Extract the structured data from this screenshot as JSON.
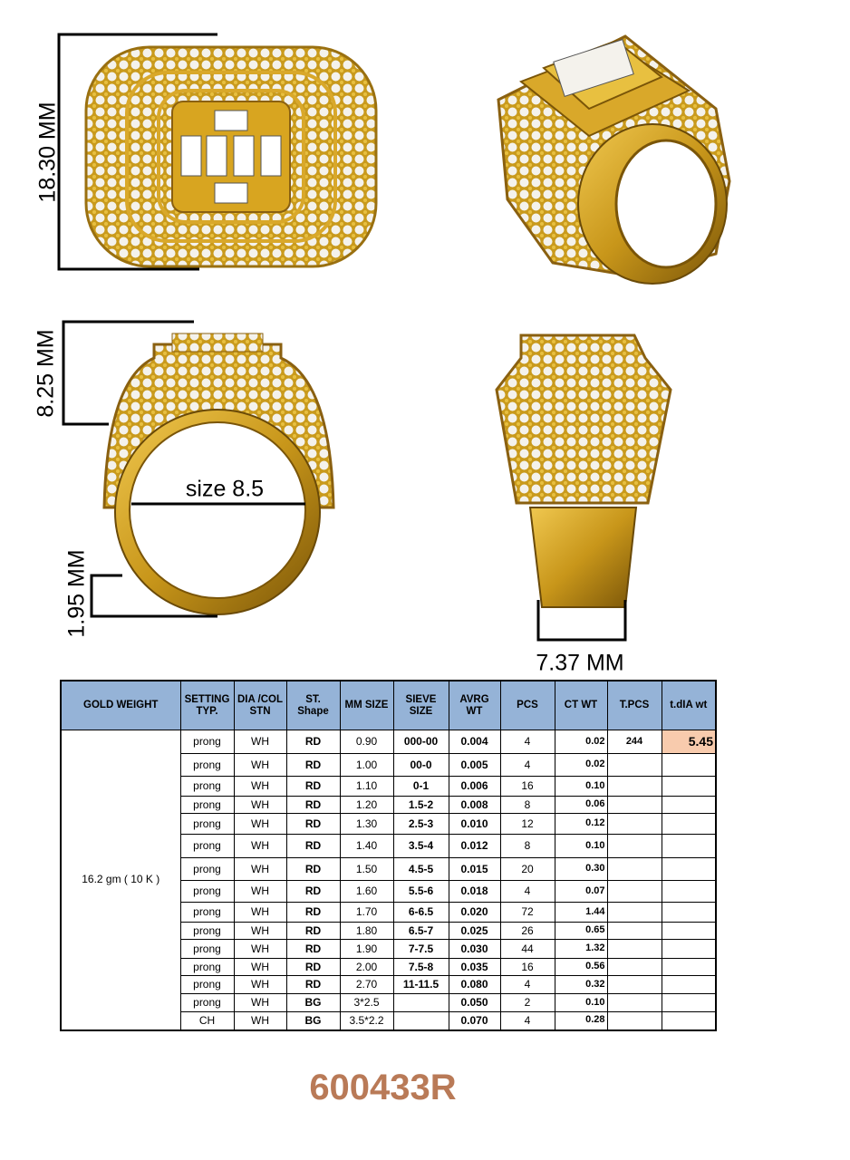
{
  "dimensions": {
    "top_height": "18.30 MM",
    "side_height": "8.25 MM",
    "ring_size": "size 8.5",
    "shank_height": "1.95 MM",
    "shank_width": "7.37 MM"
  },
  "table": {
    "headers": [
      "GOLD WEIGHT",
      "SETTING TYP.",
      "DIA /COL STN",
      "ST. Shape",
      "MM SIZE",
      "SIEVE SIZE",
      "AVRG WT",
      "PCS",
      "CT WT",
      "T.PCS",
      "t.dIA wt"
    ],
    "gold_weight": "16.2 gm ( 10 K )",
    "total_pcs": "244",
    "total_dia_wt": "5.45",
    "rows": [
      [
        "prong",
        "WH",
        "RD",
        "0.90",
        "000-00",
        "0.004",
        "4",
        "0.02"
      ],
      [
        "prong",
        "WH",
        "RD",
        "1.00",
        "00-0",
        "0.005",
        "4",
        "0.02"
      ],
      [
        "prong",
        "WH",
        "RD",
        "1.10",
        "0-1",
        "0.006",
        "16",
        "0.10"
      ],
      [
        "prong",
        "WH",
        "RD",
        "1.20",
        "1.5-2",
        "0.008",
        "8",
        "0.06"
      ],
      [
        "prong",
        "WH",
        "RD",
        "1.30",
        "2.5-3",
        "0.010",
        "12",
        "0.12"
      ],
      [
        "prong",
        "WH",
        "RD",
        "1.40",
        "3.5-4",
        "0.012",
        "8",
        "0.10"
      ],
      [
        "prong",
        "WH",
        "RD",
        "1.50",
        "4.5-5",
        "0.015",
        "20",
        "0.30"
      ],
      [
        "prong",
        "WH",
        "RD",
        "1.60",
        "5.5-6",
        "0.018",
        "4",
        "0.07"
      ],
      [
        "prong",
        "WH",
        "RD",
        "1.70",
        "6-6.5",
        "0.020",
        "72",
        "1.44"
      ],
      [
        "prong",
        "WH",
        "RD",
        "1.80",
        "6.5-7",
        "0.025",
        "26",
        "0.65"
      ],
      [
        "prong",
        "WH",
        "RD",
        "1.90",
        "7-7.5",
        "0.030",
        "44",
        "1.32"
      ],
      [
        "prong",
        "WH",
        "RD",
        "2.00",
        "7.5-8",
        "0.035",
        "16",
        "0.56"
      ],
      [
        "prong",
        "WH",
        "RD",
        "2.70",
        "11-11.5",
        "0.080",
        "4",
        "0.32"
      ],
      [
        "prong",
        "WH",
        "BG",
        "3*2.5",
        null,
        "0.050",
        "2",
        "0.10"
      ],
      [
        "CH",
        "WH",
        "BG",
        "3.5*2.2",
        null,
        "0.070",
        "4",
        "0.28"
      ]
    ]
  },
  "product_code": "600433R"
}
